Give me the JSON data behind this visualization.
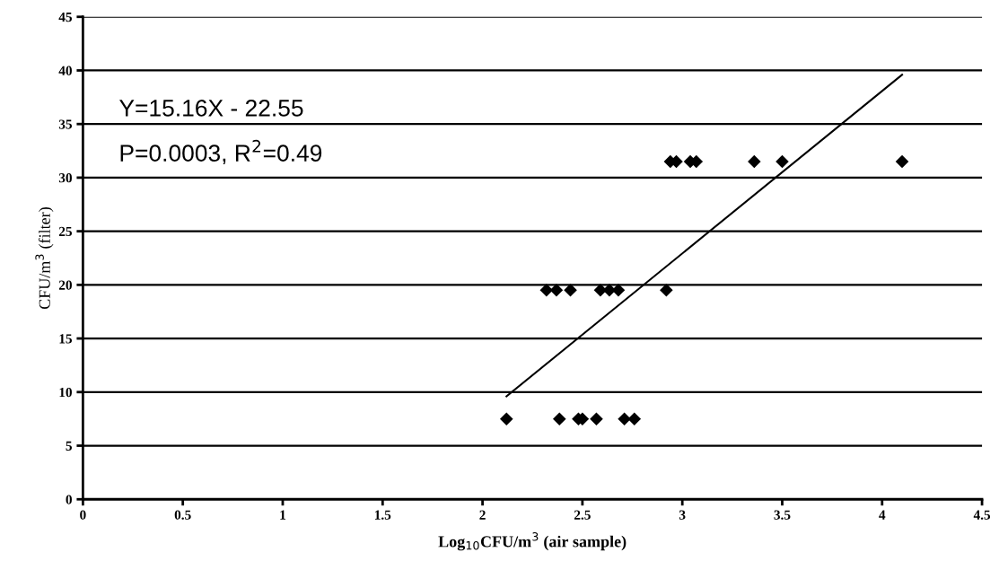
{
  "chart_data": {
    "type": "scatter",
    "xlabel": "Log$_{10}$CFU/m$^{3}$ (air sample)",
    "ylabel": "CFU/m$^{3}$ (filter)",
    "annotations": [
      "Y=15.16X - 22.55",
      "P=0.0003, R$^{2}$=0.49"
    ],
    "xlim": [
      0,
      4.5
    ],
    "xticks": [
      0,
      0.5,
      1,
      1.5,
      2,
      2.5,
      3,
      3.5,
      4,
      4.5
    ],
    "ylim": [
      0,
      45
    ],
    "yticks": [
      0,
      5,
      10,
      15,
      20,
      25,
      30,
      35,
      40,
      45
    ],
    "grid": "y",
    "marker": "diamond",
    "series": [
      {
        "color": "#000000",
        "x": [
          2.12,
          2.385,
          2.48,
          2.5,
          2.57,
          2.71,
          2.76,
          2.32,
          2.37,
          2.44,
          2.59,
          2.635,
          2.68,
          2.92,
          2.94,
          2.97,
          3.04,
          3.07,
          3.36,
          3.5,
          4.1
        ],
        "values": [
          7.5,
          7.5,
          7.5,
          7.5,
          7.5,
          7.5,
          7.5,
          19.5,
          19.5,
          19.5,
          19.5,
          19.5,
          19.5,
          19.5,
          31.5,
          31.5,
          31.5,
          31.5,
          31.5,
          31.5,
          31.5
        ]
      },
      {
        "type": "line",
        "color": "#000000",
        "x": [
          2.12,
          4.1
        ],
        "values": [
          9.6,
          39.6
        ],
        "marker": "none",
        "line_style": "solid"
      }
    ]
  }
}
